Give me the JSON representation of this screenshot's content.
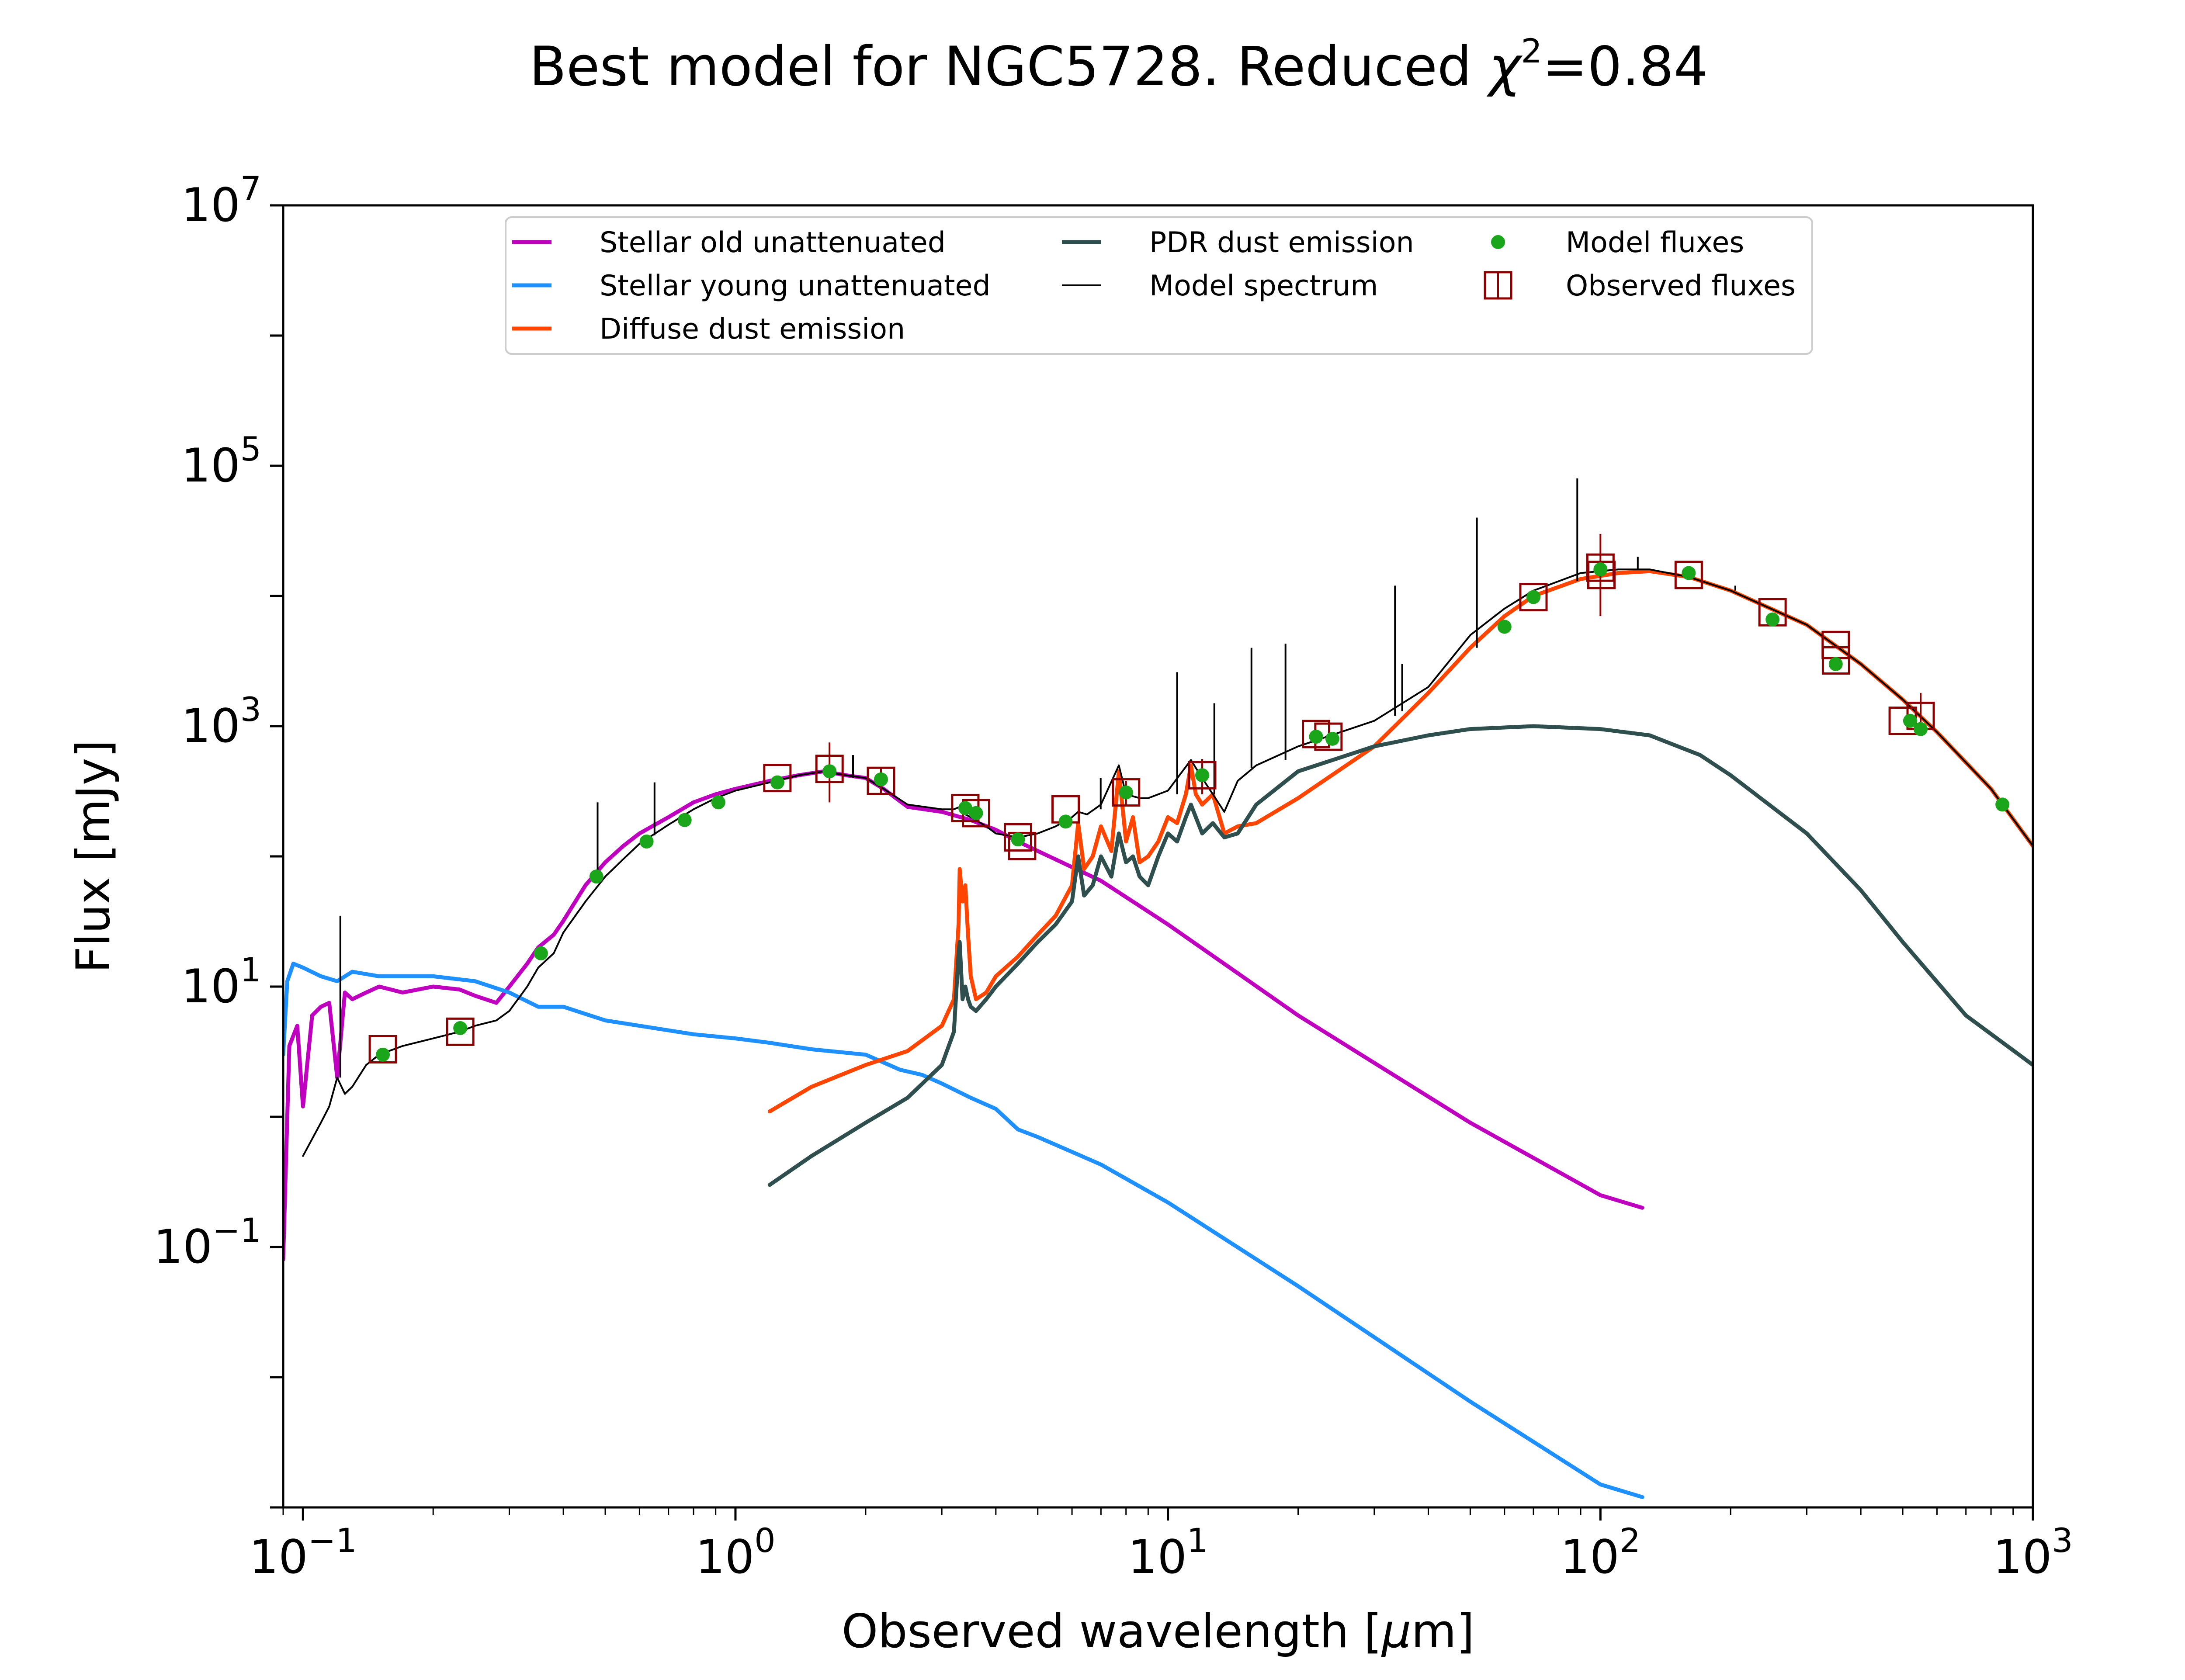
{
  "chart_data": {
    "type": "line",
    "title_prefix": "Best model for NGC5728. Reduced ",
    "title_symbol": "χ",
    "title_power": "2",
    "title_suffix": "=0.84",
    "xlabel_prefix": "Observed wavelength [",
    "xlabel_symbol": "μ",
    "xlabel_suffix": "m]",
    "ylabel": "Flux [mJy]",
    "x_scale": "log",
    "y_scale": "log",
    "xlim": [
      0.09,
      1000
    ],
    "ylim": [
      0.001,
      10000000
    ],
    "grid": false,
    "legend_position": "top",
    "x_ticks": [
      {
        "value": 0.1,
        "base": "10",
        "exp": "−1"
      },
      {
        "value": 1,
        "base": "10",
        "exp": "0"
      },
      {
        "value": 10,
        "base": "10",
        "exp": "1"
      },
      {
        "value": 100,
        "base": "10",
        "exp": "2"
      },
      {
        "value": 1000,
        "base": "10",
        "exp": "3"
      }
    ],
    "y_ticks": [
      {
        "value": 0.1,
        "base": "10",
        "exp": "−1"
      },
      {
        "value": 10,
        "base": "10",
        "exp": "1"
      },
      {
        "value": 1000,
        "base": "10",
        "exp": "3"
      },
      {
        "value": 100000,
        "base": "10",
        "exp": "5"
      },
      {
        "value": 10000000,
        "base": "10",
        "exp": "7"
      }
    ],
    "series": [
      {
        "name": "Stellar old unattenuated",
        "color": "#bf00bf",
        "x": [
          0.09,
          0.093,
          0.097,
          0.1,
          0.105,
          0.11,
          0.115,
          0.12,
          0.125,
          0.13,
          0.14,
          0.15,
          0.17,
          0.2,
          0.23,
          0.25,
          0.28,
          0.3,
          0.33,
          0.35,
          0.38,
          0.4,
          0.45,
          0.5,
          0.55,
          0.6,
          0.7,
          0.8,
          0.9,
          1.0,
          1.2,
          1.4,
          1.6,
          1.8,
          2.0,
          2.2,
          2.5,
          3.0,
          3.5,
          4.0,
          4.5,
          5.0,
          7.0,
          10.0,
          20.0,
          50.0,
          100.0,
          125.0
        ],
        "y": [
          0.08,
          3.5,
          5.0,
          1.2,
          6.0,
          7.0,
          7.5,
          2.0,
          9.0,
          8.0,
          9.0,
          10.0,
          9.0,
          10.0,
          9.5,
          8.5,
          7.5,
          10.0,
          15.0,
          20.0,
          25.0,
          32.0,
          60.0,
          90.0,
          120.0,
          150.0,
          200.0,
          260.0,
          300.0,
          330.0,
          380.0,
          420.0,
          450.0,
          420.0,
          400.0,
          330.0,
          240.0,
          220.0,
          190.0,
          160.0,
          130.0,
          110.0,
          65.0,
          30.0,
          6.0,
          0.9,
          0.25,
          0.2
        ]
      },
      {
        "name": "Stellar young unattenuated",
        "color": "#1e90ff",
        "x": [
          0.09,
          0.092,
          0.095,
          0.1,
          0.11,
          0.12,
          0.13,
          0.15,
          0.2,
          0.25,
          0.3,
          0.35,
          0.4,
          0.5,
          0.6,
          0.8,
          1.0,
          1.2,
          1.5,
          2.0,
          2.4,
          2.7,
          3.0,
          3.5,
          4.0,
          4.5,
          5.0,
          7.0,
          10.0,
          20.0,
          50.0,
          100.0,
          125.0
        ],
        "y": [
          3.0,
          11.0,
          15.0,
          14.0,
          12.0,
          11.0,
          13.0,
          12.0,
          12.0,
          11.0,
          9.0,
          7.0,
          7.0,
          5.5,
          5.0,
          4.3,
          4.0,
          3.7,
          3.3,
          3.0,
          2.3,
          2.1,
          1.8,
          1.4,
          1.15,
          0.8,
          0.7,
          0.43,
          0.22,
          0.05,
          0.0065,
          0.0015,
          0.0012
        ]
      },
      {
        "name": "Diffuse dust emission",
        "color": "#ff4500",
        "x": [
          1.2,
          1.5,
          2.0,
          2.5,
          3.0,
          3.2,
          3.28,
          3.3,
          3.35,
          3.4,
          3.45,
          3.5,
          3.6,
          3.8,
          4.0,
          4.5,
          5.0,
          5.5,
          6.0,
          6.2,
          6.4,
          6.7,
          7.0,
          7.4,
          7.7,
          8.0,
          8.3,
          8.6,
          9.0,
          9.5,
          10.0,
          10.5,
          11.0,
          11.3,
          11.6,
          12.0,
          12.7,
          13.5,
          14.5,
          16.0,
          20.0,
          30.0,
          40.0,
          50.0,
          60.0,
          70.0,
          90.0,
          110.0,
          130.0,
          160.0,
          200.0,
          300.0,
          400.0,
          500.0,
          600.0,
          800.0,
          1000.0
        ],
        "y": [
          1.1,
          1.7,
          2.5,
          3.2,
          5.0,
          8.0,
          30.0,
          80.0,
          45.0,
          60.0,
          25.0,
          12.0,
          8.0,
          9.0,
          12.0,
          17.0,
          25.0,
          35.0,
          60.0,
          180.0,
          80.0,
          100.0,
          170.0,
          110.0,
          450.0,
          130.0,
          200.0,
          90.0,
          100.0,
          130.0,
          200.0,
          180.0,
          300.0,
          500.0,
          300.0,
          250.0,
          300.0,
          150.0,
          170.0,
          180.0,
          280.0,
          700.0,
          1800.0,
          4000.0,
          7000.0,
          10000.0,
          13500.0,
          15000.0,
          15500.0,
          14000.0,
          11000.0,
          6000.0,
          3000.0,
          1600.0,
          900.0,
          330.0,
          120.0
        ]
      },
      {
        "name": "PDR dust emission",
        "color": "#2f4f4f",
        "x": [
          1.2,
          1.5,
          2.0,
          2.5,
          3.0,
          3.2,
          3.28,
          3.3,
          3.35,
          3.4,
          3.45,
          3.5,
          3.6,
          3.8,
          4.0,
          4.5,
          5.0,
          5.5,
          6.0,
          6.2,
          6.4,
          6.7,
          7.0,
          7.4,
          7.7,
          8.0,
          8.3,
          8.6,
          9.0,
          9.5,
          10.0,
          10.5,
          11.0,
          11.3,
          11.6,
          12.0,
          12.7,
          13.5,
          14.5,
          16.0,
          20.0,
          30.0,
          40.0,
          50.0,
          70.0,
          100.0,
          130.0,
          170.0,
          200.0,
          300.0,
          400.0,
          500.0,
          700.0,
          1000.0
        ],
        "y": [
          0.3,
          0.5,
          0.9,
          1.4,
          2.5,
          4.5,
          18.0,
          22.0,
          8.0,
          10.0,
          8.0,
          7.0,
          6.5,
          8.0,
          10.0,
          15.0,
          22.0,
          30.0,
          45.0,
          100.0,
          50.0,
          60.0,
          100.0,
          70.0,
          150.0,
          90.0,
          100.0,
          70.0,
          60.0,
          100.0,
          150.0,
          130.0,
          200.0,
          250.0,
          200.0,
          150.0,
          180.0,
          140.0,
          150.0,
          250.0,
          450.0,
          700.0,
          850.0,
          950.0,
          1000.0,
          950.0,
          850.0,
          600.0,
          420.0,
          150.0,
          55.0,
          22.0,
          6.0,
          2.5
        ]
      },
      {
        "name": "Model spectrum",
        "color": "#000000",
        "x": [
          0.1,
          0.11,
          0.115,
          0.12,
          0.125,
          0.13,
          0.14,
          0.15,
          0.17,
          0.2,
          0.23,
          0.25,
          0.28,
          0.3,
          0.33,
          0.35,
          0.38,
          0.4,
          0.45,
          0.5,
          0.55,
          0.6,
          0.7,
          0.8,
          0.9,
          1.0,
          1.2,
          1.4,
          1.6,
          1.8,
          2.0,
          2.2,
          2.5,
          3.0,
          3.2,
          3.3,
          3.4,
          3.5,
          3.8,
          4.0,
          4.5,
          5.0,
          5.5,
          6.0,
          6.2,
          6.5,
          7.0,
          7.7,
          8.0,
          8.6,
          9.0,
          10.0,
          11.3,
          12.0,
          13.5,
          14.5,
          16.0,
          20.0,
          30.0,
          40.0,
          50.0,
          60.0,
          70.0,
          90.0,
          110.0,
          130.0,
          160.0,
          200.0,
          300.0,
          400.0,
          500.0,
          600.0,
          800.0,
          1000.0
        ],
        "y": [
          0.5,
          0.9,
          1.2,
          2.0,
          1.5,
          1.7,
          2.5,
          3.0,
          3.5,
          4.0,
          4.5,
          5.0,
          5.5,
          6.5,
          10.0,
          14.0,
          18.0,
          26.0,
          45.0,
          70.0,
          95.0,
          125.0,
          175.0,
          230.0,
          280.0,
          320.0,
          370.0,
          420.0,
          450.0,
          420.0,
          400.0,
          330.0,
          250.0,
          230.0,
          230.0,
          240.0,
          210.0,
          200.0,
          170.0,
          150.0,
          140.0,
          150.0,
          170.0,
          200.0,
          220.0,
          210.0,
          250.0,
          500.0,
          300.0,
          280.0,
          280.0,
          320.0,
          550.0,
          400.0,
          220.0,
          380.0,
          500.0,
          700.0,
          1100.0,
          2000.0,
          5000.0,
          8000.0,
          11000.0,
          15000.0,
          16000.0,
          16000.0,
          14000.0,
          11000.0,
          6000.0,
          3000.0,
          1600.0,
          900.0,
          330.0,
          120.0
        ]
      }
    ],
    "emission_lines": {
      "color": "#000000",
      "lines": [
        {
          "x": 0.122,
          "y_base": 2.0,
          "y_top": 35.0
        },
        {
          "x": 0.48,
          "y_base": 75.0,
          "y_top": 260.0
        },
        {
          "x": 0.65,
          "y_base": 145.0,
          "y_top": 370.0
        },
        {
          "x": 1.87,
          "y_base": 400.0,
          "y_top": 600.0
        },
        {
          "x": 6.99,
          "y_base": 230.0,
          "y_top": 400.0
        },
        {
          "x": 10.5,
          "y_base": 300.0,
          "y_top": 2600.0
        },
        {
          "x": 12.8,
          "y_base": 300.0,
          "y_top": 1500.0
        },
        {
          "x": 15.6,
          "y_base": 480.0,
          "y_top": 4000.0
        },
        {
          "x": 18.7,
          "y_base": 550.0,
          "y_top": 4300.0
        },
        {
          "x": 33.5,
          "y_base": 1200.0,
          "y_top": 12000.0
        },
        {
          "x": 34.8,
          "y_base": 1300.0,
          "y_top": 3000.0
        },
        {
          "x": 51.8,
          "y_base": 4000.0,
          "y_top": 40000.0
        },
        {
          "x": 88.4,
          "y_base": 13000.0,
          "y_top": 80000.0
        },
        {
          "x": 122.0,
          "y_base": 16000.0,
          "y_top": 20000.0
        },
        {
          "x": 205.0,
          "y_base": 11000.0,
          "y_top": 12000.0
        }
      ]
    },
    "model_fluxes": {
      "name": "Model fluxes",
      "color": "#1aa51a",
      "x": [
        0.153,
        0.231,
        0.355,
        0.477,
        0.623,
        0.763,
        0.913,
        1.25,
        1.65,
        2.17,
        3.4,
        3.6,
        4.5,
        5.8,
        8.0,
        12.0,
        22.0,
        24.0,
        60.0,
        70.0,
        100.0,
        160.0,
        250.0,
        350.0,
        520.0,
        550.0,
        850.0
      ],
      "y": [
        3.0,
        4.8,
        18.0,
        70.0,
        130.0,
        190.0,
        260.0,
        370.0,
        450.0,
        390.0,
        235.0,
        215.0,
        135.0,
        185.0,
        310.0,
        420.0,
        830.0,
        800.0,
        5800.0,
        9800.0,
        16000.0,
        15000.0,
        6600.0,
        3000.0,
        1100.0,
        950.0,
        250.0
      ]
    },
    "observed_fluxes": {
      "name": "Observed fluxes",
      "color": "#8b0000",
      "points": [
        {
          "x": 0.153,
          "y": 3.3,
          "err_lo": 3.3,
          "err_hi": 3.3
        },
        {
          "x": 0.231,
          "y": 4.5,
          "err_lo": 4.5,
          "err_hi": 4.5
        },
        {
          "x": 1.25,
          "y": 400.0,
          "err_lo": 400.0,
          "err_hi": 400.0
        },
        {
          "x": 1.65,
          "y": 470.0,
          "err_lo": 260.0,
          "err_hi": 750.0
        },
        {
          "x": 2.17,
          "y": 380.0,
          "err_lo": 300.0,
          "err_hi": 480.0
        },
        {
          "x": 3.4,
          "y": 235.0,
          "err_lo": 235.0,
          "err_hi": 235.0
        },
        {
          "x": 3.6,
          "y": 215.0,
          "err_lo": 215.0,
          "err_hi": 215.0
        },
        {
          "x": 4.5,
          "y": 140.0,
          "err_lo": 140.0,
          "err_hi": 140.0
        },
        {
          "x": 4.6,
          "y": 120.0,
          "err_lo": 120.0,
          "err_hi": 120.0
        },
        {
          "x": 5.8,
          "y": 230.0,
          "err_lo": 230.0,
          "err_hi": 230.0
        },
        {
          "x": 8.0,
          "y": 310.0,
          "err_lo": 250.0,
          "err_hi": 380.0
        },
        {
          "x": 12.0,
          "y": 420.0,
          "err_lo": 300.0,
          "err_hi": 560.0
        },
        {
          "x": 22.0,
          "y": 870.0,
          "err_lo": 870.0,
          "err_hi": 870.0
        },
        {
          "x": 23.5,
          "y": 830.0,
          "err_lo": 830.0,
          "err_hi": 830.0
        },
        {
          "x": 70.0,
          "y": 9800.0,
          "err_lo": 9800.0,
          "err_hi": 9800.0
        },
        {
          "x": 100.0,
          "y": 16500.0,
          "err_lo": 7000.0,
          "err_hi": 30000.0
        },
        {
          "x": 100.5,
          "y": 14500.0,
          "err_lo": 14500.0,
          "err_hi": 14500.0
        },
        {
          "x": 160.0,
          "y": 14500.0,
          "err_lo": 14500.0,
          "err_hi": 14500.0
        },
        {
          "x": 250.0,
          "y": 7500.0,
          "err_lo": 7500.0,
          "err_hi": 7500.0
        },
        {
          "x": 350.0,
          "y": 4200.0,
          "err_lo": 4200.0,
          "err_hi": 4200.0
        },
        {
          "x": 350.5,
          "y": 3200.0,
          "err_lo": 3200.0,
          "err_hi": 3200.0
        },
        {
          "x": 500.0,
          "y": 1100.0,
          "err_lo": 1100.0,
          "err_hi": 1100.0
        },
        {
          "x": 550.0,
          "y": 1200.0,
          "err_lo": 850.0,
          "err_hi": 1800.0
        }
      ]
    },
    "legend": {
      "columns": [
        [
          {
            "label": "Stellar old unattenuated",
            "kind": "line",
            "color": "#bf00bf"
          },
          {
            "label": "Stellar young unattenuated",
            "kind": "line",
            "color": "#1e90ff"
          },
          {
            "label": "Diffuse dust emission",
            "kind": "line",
            "color": "#ff4500"
          }
        ],
        [
          {
            "label": "PDR dust emission",
            "kind": "line",
            "color": "#2f4f4f"
          },
          {
            "label": "Model spectrum",
            "kind": "thinline",
            "color": "#000000"
          }
        ],
        [
          {
            "label": "Model fluxes",
            "kind": "dot",
            "color": "#1aa51a"
          },
          {
            "label": "Observed fluxes",
            "kind": "square",
            "color": "#8b0000"
          }
        ]
      ]
    }
  }
}
